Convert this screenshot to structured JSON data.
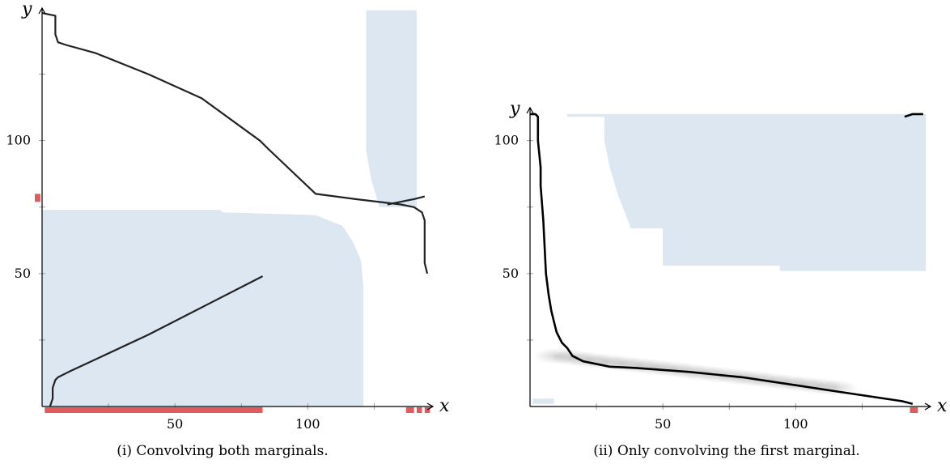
{
  "figure": {
    "captions": [
      "(i) Convolving both marginals.",
      "(ii) Only convolving the first marginal."
    ]
  },
  "chart_data": [
    {
      "type": "line",
      "xlabel": "x",
      "ylabel": "y",
      "xticks": [
        50,
        100
      ],
      "yticks": [
        50,
        100
      ],
      "xlim": [
        0,
        148
      ],
      "ylim": [
        0,
        148
      ],
      "fill_color": "#dce7f1",
      "line_color": "#222222",
      "marker_color": "#e05b5b",
      "shaded_regions": [
        {
          "points": [
            [
              0,
              74
            ],
            [
              67,
              74
            ],
            [
              68,
              73
            ],
            [
              103,
              72
            ],
            [
              113,
              68
            ],
            [
              117,
              62
            ],
            [
              120,
              55
            ],
            [
              121,
              45
            ],
            [
              121,
              0
            ],
            [
              0,
              0
            ]
          ]
        },
        {
          "points": [
            [
              122,
              149
            ],
            [
              141,
              149
            ],
            [
              141,
              75
            ],
            [
              127,
              75
            ],
            [
              124,
              85
            ],
            [
              122,
              96
            ]
          ]
        }
      ],
      "series": [
        {
          "points": [
            [
              0,
              148
            ],
            [
              5,
              147
            ],
            [
              5,
              140
            ],
            [
              6,
              137
            ],
            [
              9,
              136
            ],
            [
              20,
              133
            ],
            [
              40,
              125
            ],
            [
              60,
              116
            ],
            [
              82,
              100
            ],
            [
              85,
              97
            ],
            [
              103,
              80
            ],
            [
              118,
              78
            ],
            [
              135,
              76
            ],
            [
              140,
              75
            ],
            [
              143,
              73
            ],
            [
              144,
              70
            ],
            [
              144,
              54
            ],
            [
              145,
              50
            ]
          ]
        },
        {
          "points": [
            [
              3,
              0
            ],
            [
              4,
              3
            ],
            [
              4,
              7
            ],
            [
              5,
              10
            ],
            [
              6,
              11
            ],
            [
              10,
              13
            ],
            [
              40,
              27
            ],
            [
              83,
              49
            ]
          ]
        },
        {
          "points": [
            [
              130,
              76
            ],
            [
              135,
              77
            ],
            [
              140,
              78
            ],
            [
              144,
              79
            ]
          ]
        }
      ],
      "x_marginal_marks": [
        [
          1,
          83
        ],
        [
          137,
          140
        ],
        [
          141,
          143
        ],
        [
          144,
          146
        ]
      ],
      "y_marginal_marks": [
        [
          77,
          80
        ]
      ]
    },
    {
      "type": "line",
      "xlabel": "x",
      "ylabel": "y",
      "xticks": [
        50,
        100
      ],
      "yticks": [
        50,
        100
      ],
      "xlim": [
        0,
        148
      ],
      "ylim": [
        0,
        111
      ],
      "fill_color": "#dce7f1",
      "line_color": "#000000",
      "marker_color": "#e05b5b",
      "shaded_regions": [
        {
          "points": [
            [
              14,
              110
            ],
            [
              28,
              110
            ],
            [
              28,
              110
            ],
            [
              149,
              110
            ],
            [
              149,
              51
            ],
            [
              94,
              51
            ],
            [
              94,
              53
            ],
            [
              50,
              53
            ],
            [
              50,
              67
            ],
            [
              38,
              67
            ],
            [
              33,
              80
            ],
            [
              30,
              90
            ],
            [
              28,
              100
            ],
            [
              28,
              109
            ],
            [
              14,
              109
            ]
          ]
        },
        {
          "points": [
            [
              1,
              3
            ],
            [
              9,
              3
            ],
            [
              9,
              1
            ],
            [
              1,
              1
            ]
          ]
        }
      ],
      "smudges": [
        {
          "x": [
            10,
            115
          ],
          "y": [
            5,
            20
          ]
        }
      ],
      "series": [
        {
          "points": [
            [
              0,
              110
            ],
            [
              2,
              110
            ],
            [
              3,
              109
            ],
            [
              3,
              100
            ],
            [
              4,
              90
            ],
            [
              4,
              83
            ],
            [
              5,
              70
            ],
            [
              6,
              50
            ],
            [
              7,
              42
            ],
            [
              8,
              36
            ],
            [
              9,
              32
            ],
            [
              10,
              28
            ],
            [
              11,
              26
            ],
            [
              12,
              24
            ],
            [
              14,
              22
            ],
            [
              16,
              19
            ],
            [
              20,
              17
            ],
            [
              30,
              15
            ],
            [
              40,
              14.5
            ],
            [
              60,
              13
            ],
            [
              80,
              11
            ],
            [
              100,
              8
            ],
            [
              120,
              5
            ],
            [
              140,
              2
            ],
            [
              144,
              1
            ]
          ]
        },
        {
          "points": [
            [
              141,
              109
            ],
            [
              144,
              110
            ],
            [
              148,
              110
            ]
          ]
        }
      ],
      "x_marginal_marks": [
        [
          143,
          146
        ]
      ]
    }
  ]
}
